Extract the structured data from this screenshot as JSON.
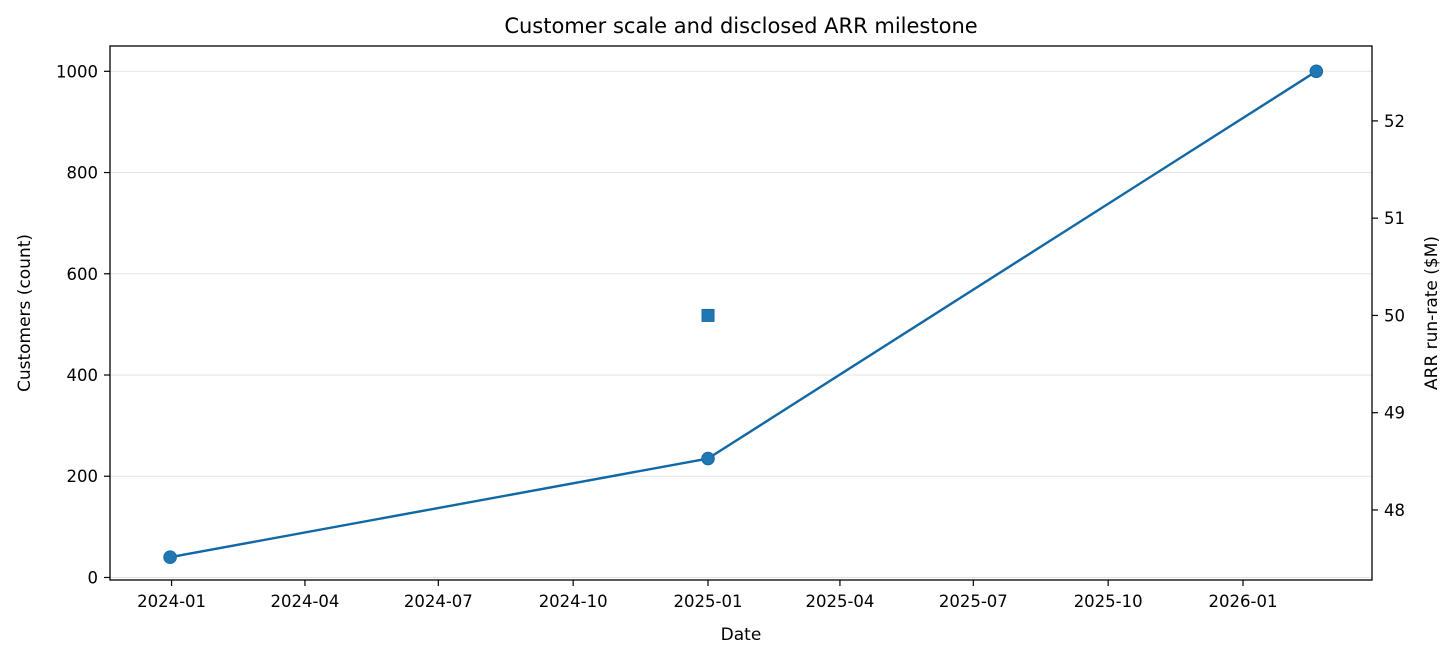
{
  "chart_data": {
    "type": "line",
    "title": "Customer scale and disclosed ARR milestone",
    "xlabel": "Date",
    "ylabel": "Customers (count)",
    "y2label": "ARR run-rate ($M)",
    "x_ticks": [
      "2024-01",
      "2024-04",
      "2024-07",
      "2024-10",
      "2025-01",
      "2025-04",
      "2025-07",
      "2025-10",
      "2026-01"
    ],
    "y_ticks": [
      0,
      200,
      400,
      600,
      800,
      1000
    ],
    "y2_ticks": [
      48,
      49,
      50,
      51,
      52
    ],
    "xlim": [
      "2023-11-20",
      "2026-03-30"
    ],
    "ylim": [
      -5,
      1050
    ],
    "y2lim": [
      47.28,
      52.77
    ],
    "grid": "horizontal",
    "series": [
      {
        "axis": "left",
        "marker": "circle",
        "color": "#1f77b4",
        "line_color": "#1068a6",
        "points": [
          {
            "x": "2023-12-31",
            "y": 40
          },
          {
            "x": "2025-01-01",
            "y": 235
          },
          {
            "x": "2026-02-20",
            "y": 1000
          }
        ]
      },
      {
        "axis": "right",
        "marker": "square",
        "color": "#1f77b4",
        "points": [
          {
            "x": "2025-01-01",
            "y": 50
          }
        ]
      }
    ]
  }
}
